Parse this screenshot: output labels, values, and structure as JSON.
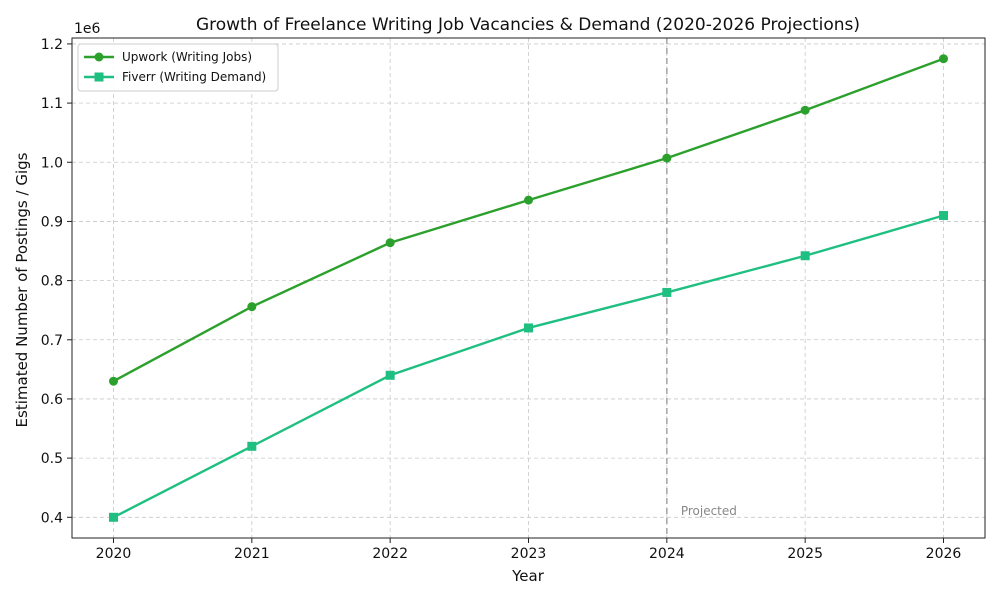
{
  "chart_data": {
    "type": "line",
    "title": "Growth of Freelance Writing Job Vacancies & Demand (2020-2026 Projections)",
    "xlabel": "Year",
    "ylabel": "Estimated Number of Postings / Gigs",
    "y_offset_label": "1e6",
    "categories": [
      "2020",
      "2021",
      "2022",
      "2023",
      "2024",
      "2025",
      "2026"
    ],
    "x": [
      2020,
      2021,
      2022,
      2023,
      2024,
      2025,
      2026
    ],
    "xlim": [
      2019.7,
      2026.3
    ],
    "ylim": [
      0.365,
      1.21
    ],
    "y_ticks": [
      0.4,
      0.5,
      0.6,
      0.7,
      0.8,
      0.9,
      1.0,
      1.1,
      1.2
    ],
    "y_tick_labels": [
      "0.4",
      "0.5",
      "0.6",
      "0.7",
      "0.8",
      "0.9",
      "1.0",
      "1.1",
      "1.2"
    ],
    "grid": true,
    "legend_position": "top-left",
    "series": [
      {
        "name": "Upwork (Writing Jobs)",
        "color": "#2ca02c",
        "marker": "circle",
        "values": [
          0.63,
          0.756,
          0.864,
          0.936,
          1.007,
          1.088,
          1.175
        ]
      },
      {
        "name": "Fiverr (Writing Demand)",
        "color": "#1fbf82",
        "marker": "square",
        "values": [
          0.4,
          0.52,
          0.64,
          0.72,
          0.78,
          0.842,
          0.91
        ]
      }
    ],
    "annotations": [
      {
        "type": "vline",
        "x": 2024,
        "color": "#aaaaaa",
        "style": "dashed",
        "label": "Projected"
      }
    ]
  }
}
